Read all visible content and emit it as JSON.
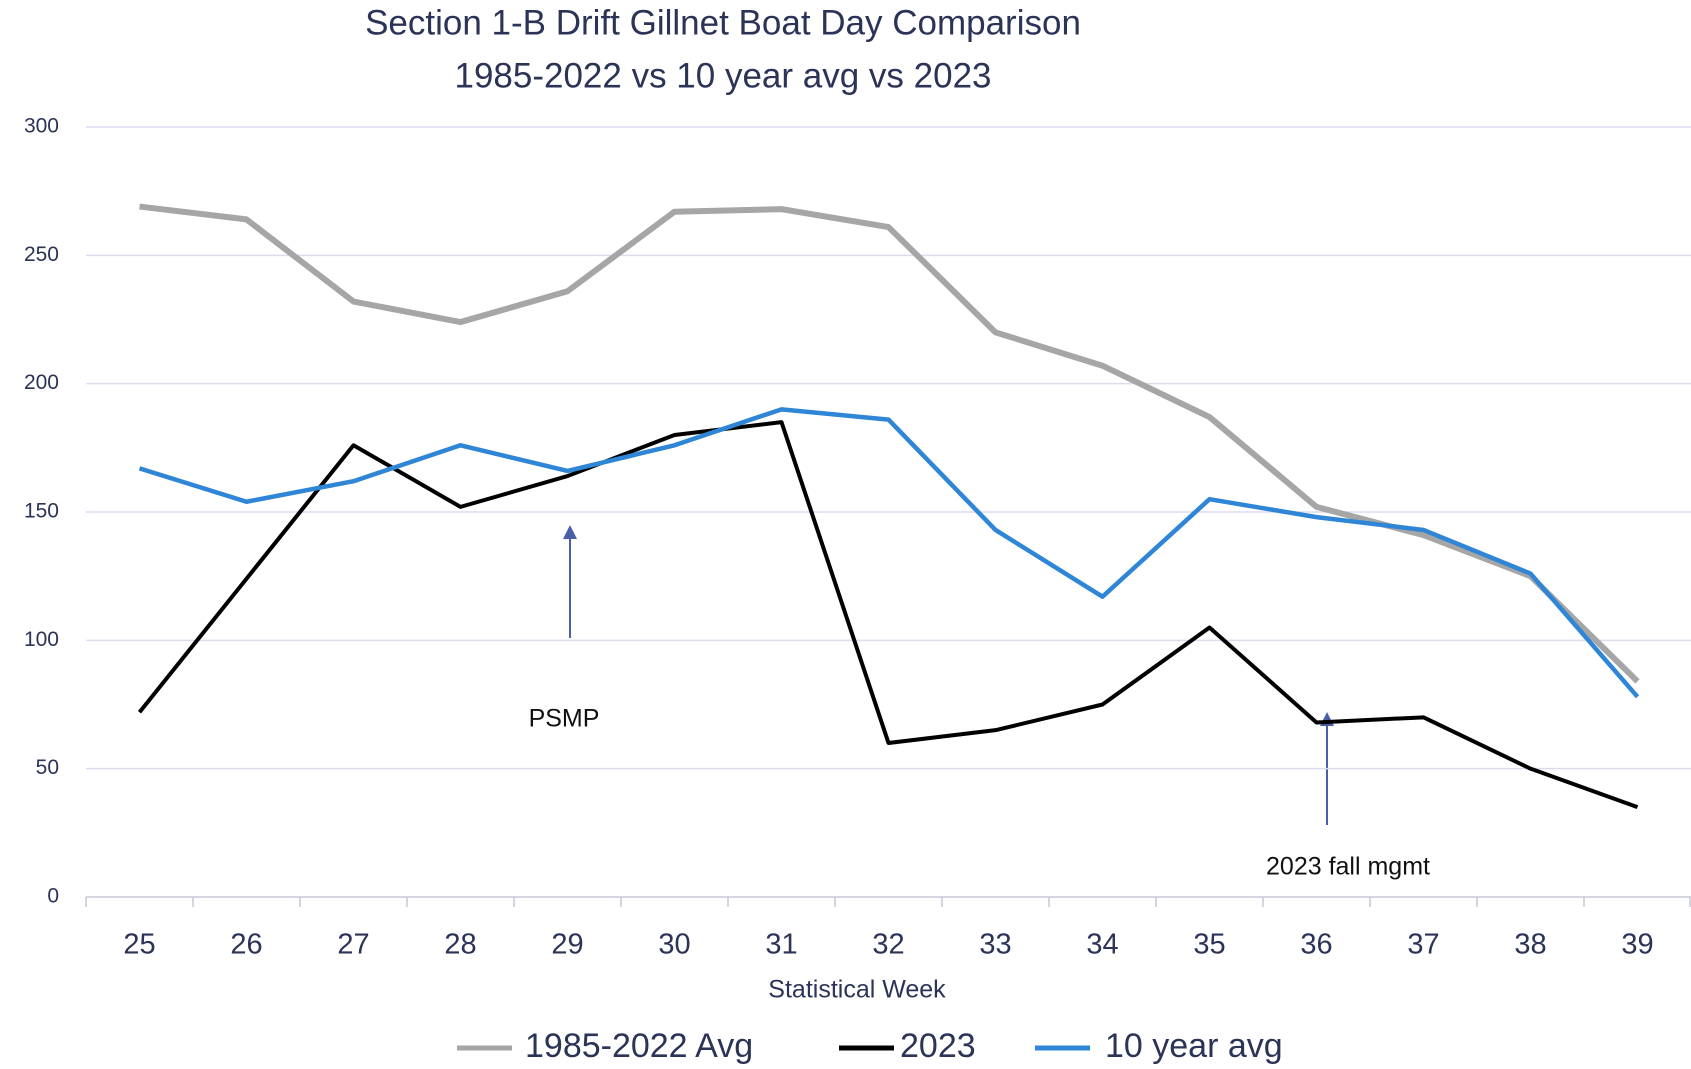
{
  "chart_data": {
    "type": "line",
    "title": "Section 1-B Drift Gillnet Boat Day Comparison",
    "subtitle": "1985-2022 vs 10 year avg vs 2023",
    "x_label": "Statistical Week",
    "categories": [
      "25",
      "26",
      "27",
      "28",
      "29",
      "30",
      "31",
      "32",
      "33",
      "34",
      "35",
      "36",
      "37",
      "38",
      "39"
    ],
    "series": [
      {
        "name": "1985-2022 Avg",
        "color": "#a6a6a6",
        "values": [
          269,
          264,
          232,
          224,
          236,
          267,
          268,
          261,
          220,
          207,
          187,
          152,
          141,
          125,
          84
        ]
      },
      {
        "name": "2023",
        "color": "#000000",
        "values": [
          72,
          124,
          176,
          152,
          164,
          180,
          185,
          60,
          65,
          75,
          105,
          68,
          70,
          50,
          35
        ]
      },
      {
        "name": "10 year avg",
        "color": "#2f86d6",
        "values": [
          167,
          154,
          162,
          176,
          166,
          176,
          190,
          186,
          143,
          117,
          155,
          148,
          143,
          126,
          78
        ]
      }
    ],
    "ylim": [
      0,
      300
    ],
    "yticks": [
      0,
      50,
      100,
      150,
      200,
      250,
      300
    ],
    "grid": true,
    "annotations": [
      "PSMP",
      "2023 fall mgmt"
    ]
  }
}
